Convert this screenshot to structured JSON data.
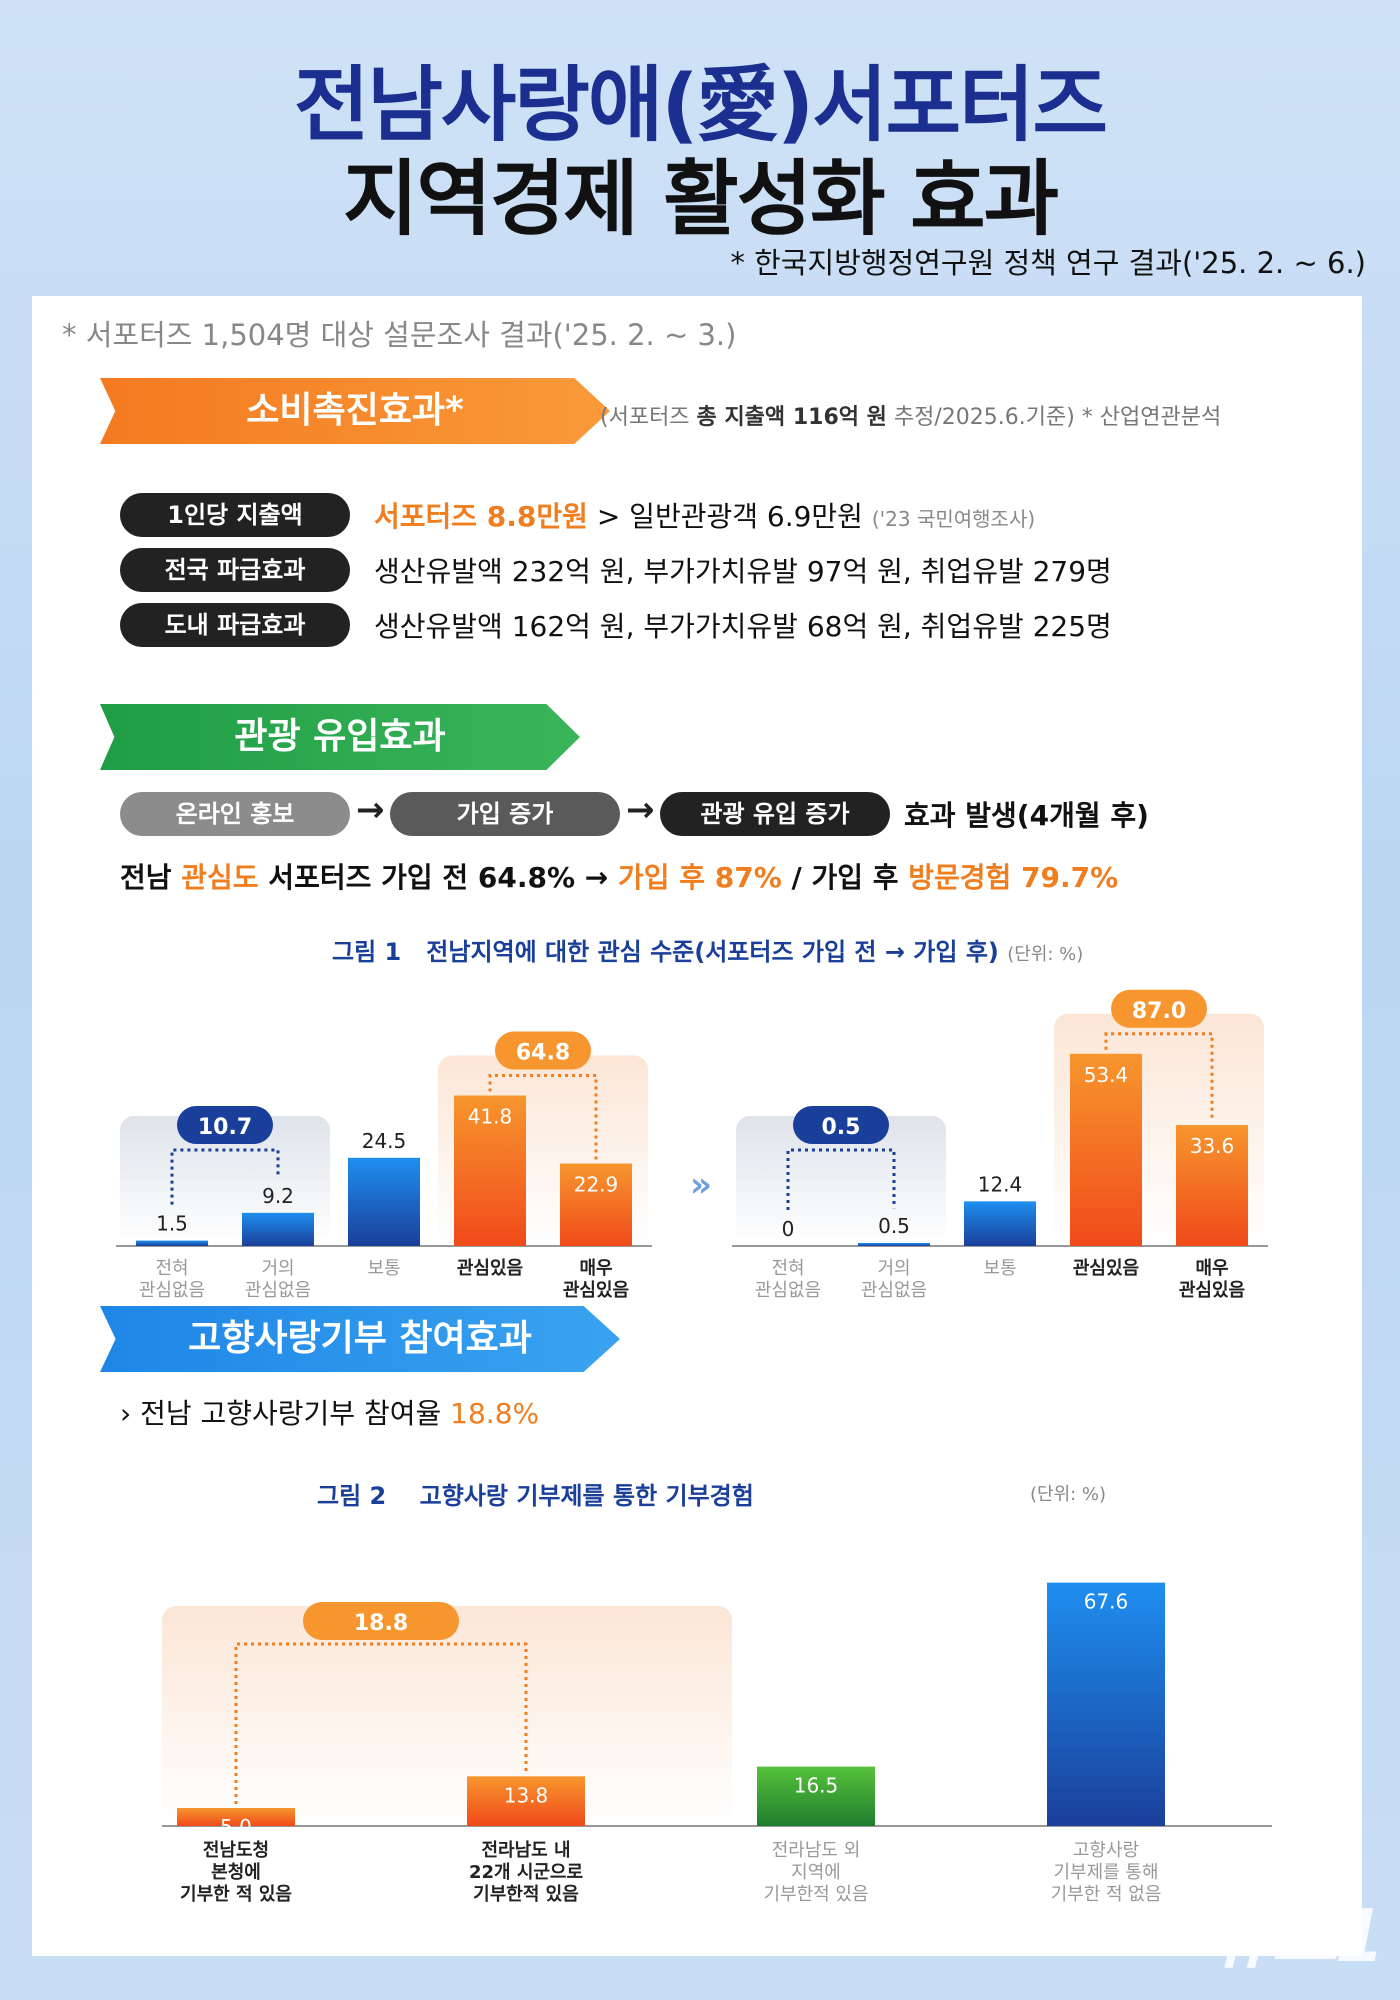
{
  "title_line1": "전남사랑애(愛)서포터즈",
  "title_line2": "지역경제 활성화 효과",
  "source_note": "* 한국지방행정연구원 정책 연구 결과('25. 2. ~ 6.)",
  "survey_note": "* 서포터즈 1,504명 대상 설문조사 결과('25. 2. ~ 3.)",
  "section1": {
    "banner": "소비촉진효과*",
    "note_pre": "(서포터즈 ",
    "note_bold": "총 지출액 116억 원",
    "note_post": " 추정/2025.6.기준)  * 산업연관분석",
    "rows": [
      {
        "pill": "1인당 지출액",
        "highlight": "서포터즈 8.8만원",
        "text": " > 일반관광객 6.9만원 ",
        "small": "('23 국민여행조사)"
      },
      {
        "pill": "전국 파급효과",
        "highlight": "",
        "text": "생산유발액 232억 원, 부가가치유발 97억 원, 취업유발 279명",
        "small": ""
      },
      {
        "pill": "도내 파급효과",
        "highlight": "",
        "text": "생산유발액 162억 원, 부가가치유발 68억 원, 취업유발 225명",
        "small": ""
      }
    ]
  },
  "section2": {
    "banner": "관광 유입효과",
    "flow": [
      "온라인 홍보",
      "가입 증가",
      "관광 유입 증가"
    ],
    "flow_arrow": "→",
    "flow_result": "효과 발생(4개월 후)",
    "stat_a": "전남 ",
    "stat_b": "관심도",
    "stat_c": " 서포터즈 가입 전 64.8% → ",
    "stat_d": "가입 후 87%",
    "stat_e": " / 가입 후 ",
    "stat_f": "방문경험 79.7%",
    "fig_label": "그림 1",
    "fig_title": "전남지역에 대한 관심 수준(서포터즈 가입 전 → 가입 후)",
    "fig_unit": "(단위: %)"
  },
  "section3": {
    "banner": "고향사랑기부 참여효과",
    "stat_pre": "› 전남 고향사랑기부 참여율 ",
    "stat_val": "18.8%",
    "fig_label": "그림 2",
    "fig_title": "고향사랑 기부제를 통한 기부경험",
    "fig_unit": "(단위: %)"
  },
  "chart_data": [
    {
      "type": "bar",
      "title": "가입 전",
      "categories": [
        "전혀 관심없음",
        "거의 관심없음",
        "보통",
        "관심있음",
        "매우 관심있음"
      ],
      "values": [
        1.5,
        9.2,
        24.5,
        41.8,
        22.9
      ],
      "group_totals": [
        {
          "label": "10.7",
          "members": [
            0,
            1
          ]
        },
        {
          "label": "64.8",
          "members": [
            3,
            4
          ]
        }
      ],
      "colors": {
        "low": "#1e6fd0",
        "high": "#f26a1e"
      }
    },
    {
      "type": "bar",
      "title": "가입 후",
      "categories": [
        "전혀 관심없음",
        "거의 관심없음",
        "보통",
        "관심있음",
        "매우 관심있음"
      ],
      "values": [
        0,
        0.5,
        12.4,
        53.4,
        33.6
      ],
      "group_totals": [
        {
          "label": "0.5",
          "members": [
            0,
            1
          ]
        },
        {
          "label": "87.0",
          "members": [
            3,
            4
          ]
        }
      ],
      "colors": {
        "low": "#1e6fd0",
        "high": "#f26a1e"
      }
    },
    {
      "type": "bar",
      "title": "고향사랑 기부제를 통한 기부경험",
      "categories": [
        "전남도청 본청에 기부한 적 있음",
        "전라남도 내 22개 시군으로 기부한적 있음",
        "전라남도 외 지역에 기부한적 있음",
        "고향사랑 기부제를 통해 기부한 적 없음"
      ],
      "values": [
        5.0,
        13.8,
        16.5,
        67.6
      ],
      "group_totals": [
        {
          "label": "18.8",
          "members": [
            0,
            1
          ]
        }
      ],
      "colors": {
        "orange": "#f26a1e",
        "green": "#3aa635",
        "blue": "#1e6fd0"
      }
    }
  ],
  "watermark": "뉴스1"
}
